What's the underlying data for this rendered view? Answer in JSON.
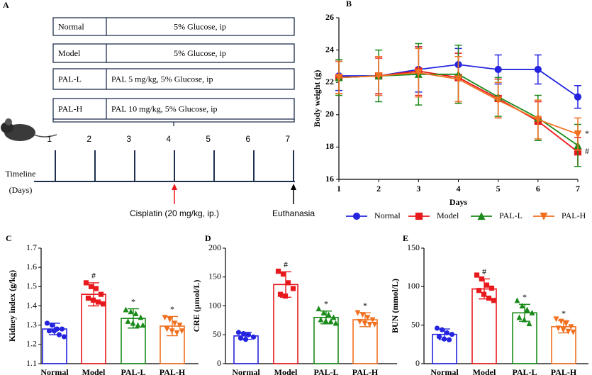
{
  "panel_a": {
    "label": "A",
    "groups": [
      {
        "name": "Normal",
        "treatment": "5% Glucose, ip"
      },
      {
        "name": "Model",
        "treatment": "5% Glucose, ip"
      },
      {
        "name": "PAL-L",
        "treatment": "PAL 5 mg/kg, 5% Glucose, ip"
      },
      {
        "name": "PAL-H",
        "treatment": "PAL 10 mg/kg, 5% Glucose, ip"
      }
    ],
    "timeline_label": [
      "Timeline",
      "(Days)"
    ],
    "days": [
      1,
      2,
      3,
      4,
      5,
      6,
      7
    ],
    "events": [
      {
        "text": "Cisplatin (20 mg/kg, ip.)",
        "day": 4,
        "color": "#e8191d"
      },
      {
        "text": "Euthanasia",
        "day": 7,
        "color": "#000000"
      }
    ]
  },
  "chart_data": [
    {
      "type": "line",
      "label": "B",
      "xlabel": "Days",
      "ylabel": "Body weight (g)",
      "x": [
        1,
        2,
        3,
        4,
        5,
        6,
        7
      ],
      "xlim": [
        1,
        7
      ],
      "xticks": [
        1,
        2,
        3,
        4,
        5,
        6,
        7
      ],
      "ylim": [
        16,
        26
      ],
      "yticks": [
        16,
        18,
        20,
        22,
        24,
        26
      ],
      "legend": "bottom",
      "series": [
        {
          "name": "Normal",
          "color": "#2424e0",
          "marker": "circle",
          "values": [
            22.4,
            22.4,
            22.8,
            23.1,
            22.8,
            22.8,
            21.1
          ],
          "errors": [
            0.9,
            1.2,
            1.4,
            1.0,
            0.9,
            0.9,
            0.7
          ]
        },
        {
          "name": "Model",
          "color": "#e8191d",
          "marker": "square",
          "values": [
            22.3,
            22.4,
            22.7,
            22.3,
            21.0,
            19.6,
            17.7
          ],
          "errors": [
            1.0,
            1.1,
            1.5,
            1.5,
            1.2,
            1.2,
            0.9
          ],
          "end_label": "#"
        },
        {
          "name": "PAL-L",
          "color": "#1a8a1a",
          "marker": "triangle",
          "values": [
            22.3,
            22.4,
            22.5,
            22.5,
            21.1,
            19.8,
            18.1
          ],
          "errors": [
            1.1,
            1.6,
            1.9,
            1.8,
            1.2,
            1.4,
            1.3
          ]
        },
        {
          "name": "PAL-H",
          "color": "#f07020",
          "marker": "triangle-down",
          "values": [
            22.3,
            22.4,
            22.6,
            22.2,
            20.9,
            19.7,
            18.8
          ],
          "errors": [
            1.0,
            1.2,
            1.5,
            1.4,
            1.1,
            1.2,
            1.0
          ],
          "end_label": "*"
        }
      ]
    },
    {
      "type": "bar",
      "label": "C",
      "ylabel": "Kidney index (g/kg)",
      "categories": [
        "Normal",
        "Model",
        "PAL-L",
        "PAL-H"
      ],
      "colors": [
        "#2424e0",
        "#e8191d",
        "#1a8a1a",
        "#f07020"
      ],
      "values": [
        1.28,
        1.46,
        1.335,
        1.295
      ],
      "errors": [
        0.03,
        0.06,
        0.05,
        0.05
      ],
      "annotations": [
        null,
        "#",
        "*",
        "*"
      ],
      "points": [
        [
          1.31,
          1.3,
          1.28,
          1.28,
          1.27,
          1.27,
          1.25,
          1.24
        ],
        [
          1.52,
          1.5,
          1.49,
          1.46,
          1.44,
          1.43,
          1.42,
          1.41
        ],
        [
          1.38,
          1.37,
          1.36,
          1.34,
          1.32,
          1.31,
          1.3,
          1.3
        ],
        [
          1.34,
          1.33,
          1.31,
          1.3,
          1.28,
          1.27,
          1.26,
          1.27
        ]
      ],
      "ylim": [
        1.1,
        1.7
      ],
      "yticks": [
        1.1,
        1.2,
        1.3,
        1.4,
        1.5,
        1.6,
        1.7
      ]
    },
    {
      "type": "bar",
      "label": "D",
      "ylabel": "CRE (μmol/L)",
      "categories": [
        "Normal",
        "Model",
        "PAL-L",
        "PAL-H"
      ],
      "colors": [
        "#2424e0",
        "#e8191d",
        "#1a8a1a",
        "#f07020"
      ],
      "values": [
        48,
        137,
        80,
        76
      ],
      "errors": [
        6,
        22,
        11,
        12
      ],
      "annotations": [
        null,
        "#",
        "*",
        "*"
      ],
      "points": [
        [
          54,
          52,
          50,
          46,
          44,
          42
        ],
        [
          160,
          155,
          140,
          130,
          120,
          117
        ],
        [
          95,
          88,
          85,
          80,
          76,
          74,
          73,
          70
        ],
        [
          88,
          85,
          80,
          76,
          73,
          70,
          68,
          68
        ]
      ],
      "ylim": [
        0,
        200
      ],
      "yticks": [
        0,
        50,
        100,
        150,
        200
      ]
    },
    {
      "type": "bar",
      "label": "E",
      "ylabel": "BUN (mmol/L)",
      "categories": [
        "Normal",
        "Model",
        "PAL-L",
        "PAL-H"
      ],
      "colors": [
        "#2424e0",
        "#e8191d",
        "#1a8a1a",
        "#f07020"
      ],
      "values": [
        38,
        97,
        66,
        48
      ],
      "errors": [
        7,
        13,
        11,
        8
      ],
      "annotations": [
        null,
        "#",
        "*",
        "*"
      ],
      "points": [
        [
          46,
          44,
          40,
          38,
          35,
          32,
          31
        ],
        [
          115,
          110,
          102,
          98,
          95,
          90,
          85,
          82
        ],
        [
          82,
          75,
          70,
          66,
          60,
          57,
          52
        ],
        [
          58,
          55,
          52,
          48,
          46,
          44,
          42,
          41
        ]
      ],
      "ylim": [
        0,
        150
      ],
      "yticks": [
        0,
        50,
        100,
        150
      ]
    }
  ]
}
